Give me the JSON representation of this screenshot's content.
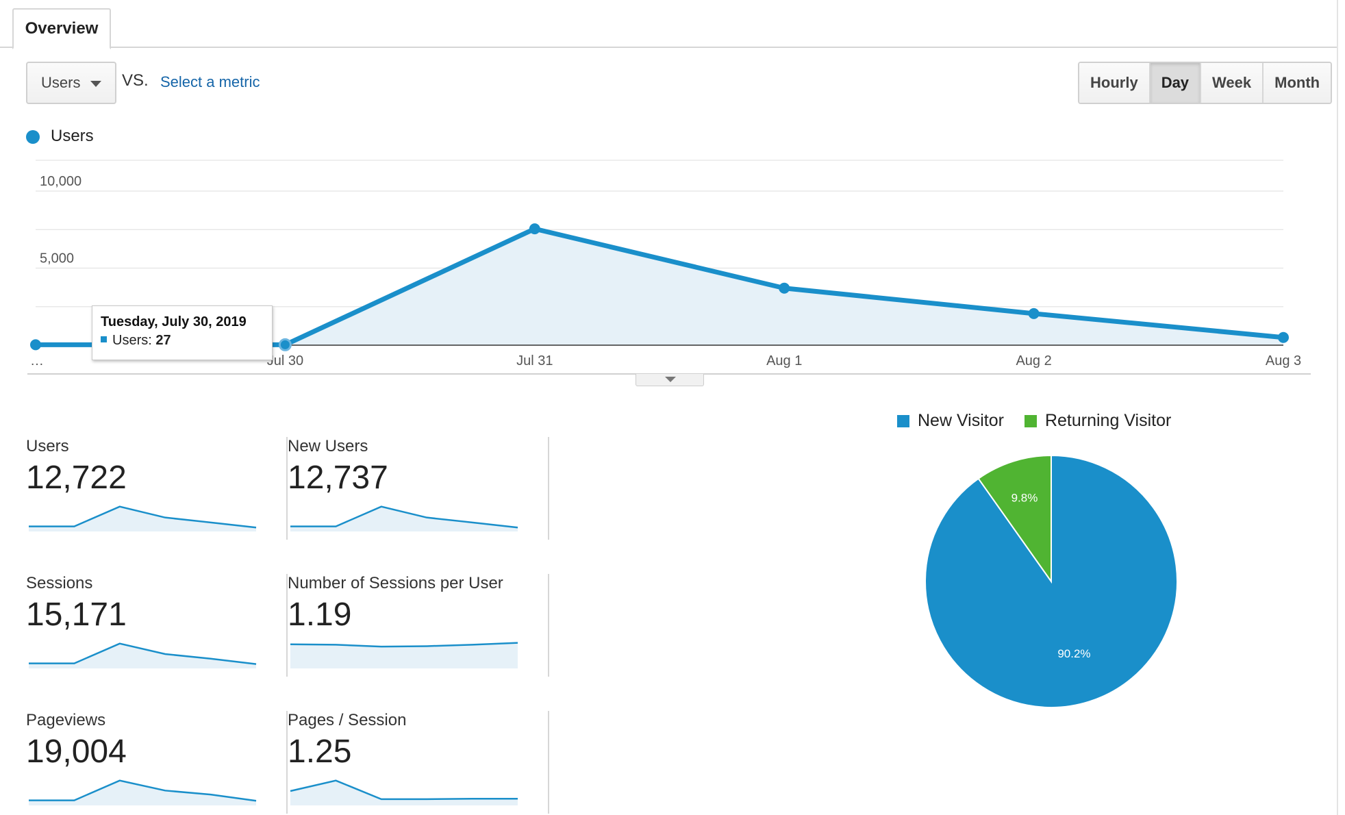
{
  "tabs": [
    {
      "label": "Overview",
      "active": true
    }
  ],
  "controls": {
    "metric": "Users",
    "vs": "VS.",
    "select_metric": "Select a metric",
    "periods": [
      "Hourly",
      "Day",
      "Week",
      "Month"
    ],
    "active_period": "Day"
  },
  "colors": {
    "primary": "#1a8fca",
    "returning": "#50b432",
    "fill": "#e6f1f8"
  },
  "tooltip": {
    "title": "Tuesday, July 30, 2019",
    "series": "Users:",
    "value": "27"
  },
  "chart_data": [
    {
      "type": "area",
      "legend": [
        "Users"
      ],
      "x": [
        "…",
        "Jul 30",
        "Jul 31",
        "Aug 1",
        "Aug 2",
        "Aug 3"
      ],
      "series": [
        {
          "name": "Users",
          "values": [
            27,
            27,
            7550,
            3700,
            2050,
            500
          ]
        }
      ],
      "yticks": [
        "10,000",
        "5,000"
      ],
      "ylim": [
        0,
        10000
      ],
      "grid": true
    },
    {
      "type": "pie",
      "legend": [
        "New Visitor",
        "Returning Visitor"
      ],
      "labels": [
        "New Visitor",
        "Returning Visitor"
      ],
      "values": [
        90.2,
        9.8
      ],
      "value_labels": [
        "90.2%",
        "9.8%"
      ]
    }
  ],
  "scorecards": [
    {
      "label": "Users",
      "value": "12,722",
      "spark": [
        0.1,
        0.1,
        0.95,
        0.48,
        0.27,
        0.05
      ]
    },
    {
      "label": "New Users",
      "value": "12,737",
      "spark": [
        0.1,
        0.1,
        0.95,
        0.48,
        0.27,
        0.05
      ]
    },
    {
      "label": "Sessions",
      "value": "15,171",
      "spark": [
        0.1,
        0.1,
        0.95,
        0.5,
        0.3,
        0.07
      ]
    },
    {
      "label": "Number of Sessions per User",
      "value": "1.19",
      "spark": [
        0.92,
        0.9,
        0.82,
        0.84,
        0.9,
        0.98
      ]
    },
    {
      "label": "Pageviews",
      "value": "19,004",
      "spark": [
        0.1,
        0.1,
        0.95,
        0.52,
        0.35,
        0.08
      ]
    },
    {
      "label": "Pages / Session",
      "value": "1.25",
      "spark": [
        0.5,
        0.95,
        0.15,
        0.15,
        0.17,
        0.17
      ]
    }
  ]
}
